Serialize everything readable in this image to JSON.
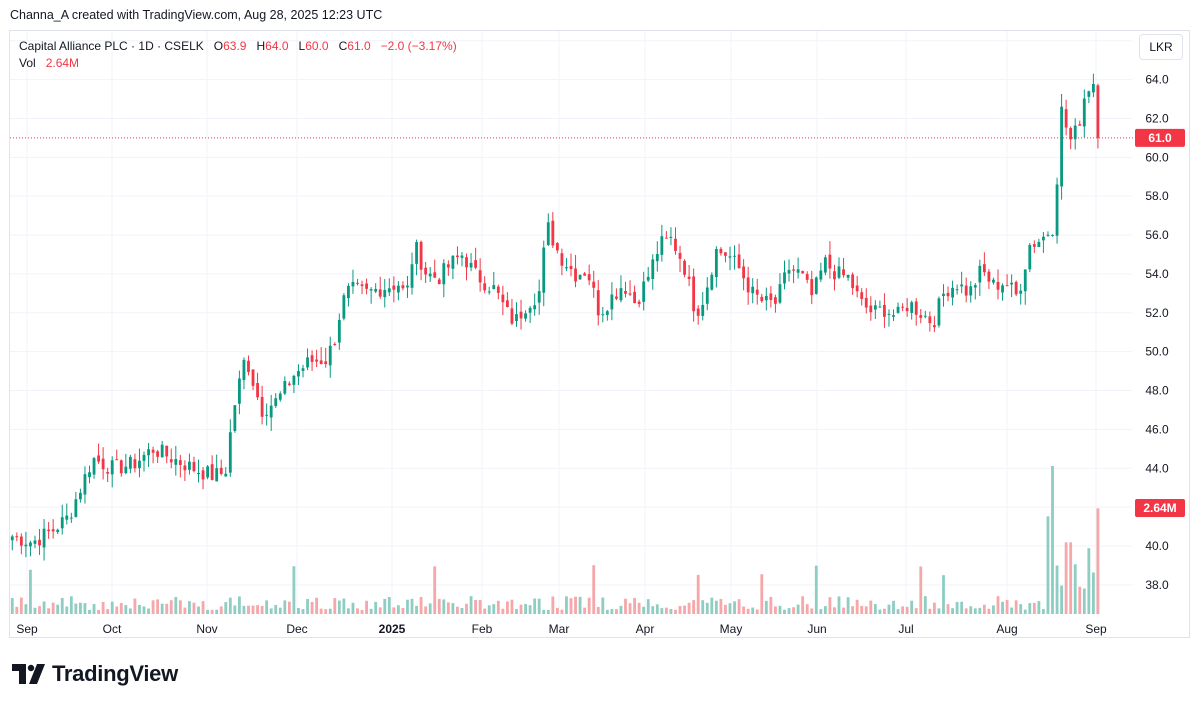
{
  "credit": "Channa_A created with TradingView.com, Aug 28, 2025 12:23 UTC",
  "legend": {
    "symbol": "Capital Alliance PLC · 1D · CSELK",
    "o_label": "O",
    "o_value": "63.9",
    "h_label": "H",
    "h_value": "64.0",
    "l_label": "L",
    "l_value": "60.0",
    "c_label": "C",
    "c_value": "61.0",
    "change": "−2.0 (−3.17%)",
    "vol_label": "Vol",
    "vol_value": "2.64M"
  },
  "currency": "LKR",
  "brand": "TradingView",
  "colors": {
    "up": "#089981",
    "down": "#f23645",
    "up_vol": "#8fcdc3",
    "down_vol": "#f5a7a9",
    "grid": "#f0f3fa",
    "text": "#131722"
  },
  "chart_data": {
    "type": "candlestick",
    "interval": "1D",
    "ylim": [
      36.5,
      66.5
    ],
    "y_ticks": [
      "38.0",
      "40.0",
      "42.0",
      "44.0",
      "46.0",
      "48.0",
      "50.0",
      "52.0",
      "54.0",
      "56.0",
      "58.0",
      "60.0",
      "62.0",
      "64.0",
      "66.0"
    ],
    "x_labels": [
      "Sep",
      "Oct",
      "Nov",
      "Dec",
      "2025",
      "Feb",
      "Mar",
      "Apr",
      "May",
      "Jun",
      "Jul",
      "Aug",
      "Sep"
    ],
    "last_price": "61.0",
    "last_volume": "2.64M",
    "days_shown": 247,
    "last_day_index": 239,
    "vol_max": 3.7,
    "anchors": [
      [
        0,
        40.5
      ],
      [
        5,
        40.2
      ],
      [
        10,
        40.8
      ],
      [
        14,
        41.5
      ],
      [
        20,
        44.5
      ],
      [
        25,
        44.0
      ],
      [
        30,
        44.2
      ],
      [
        35,
        45.0
      ],
      [
        40,
        44.5
      ],
      [
        45,
        44.0
      ],
      [
        50,
        43.6
      ],
      [
        53,
        43.8
      ],
      [
        55,
        47.0
      ],
      [
        58,
        49.8
      ],
      [
        62,
        47.0
      ],
      [
        66,
        47.5
      ],
      [
        70,
        48.8
      ],
      [
        74,
        49.5
      ],
      [
        78,
        49.6
      ],
      [
        80,
        50.5
      ],
      [
        82,
        52.5
      ],
      [
        84,
        53.2
      ],
      [
        88,
        53.0
      ],
      [
        92,
        53.3
      ],
      [
        96,
        53.5
      ],
      [
        98,
        52.8
      ],
      [
        100,
        55.5
      ],
      [
        103,
        54.0
      ],
      [
        106,
        53.8
      ],
      [
        109,
        54.5
      ],
      [
        112,
        55.0
      ],
      [
        115,
        54.0
      ],
      [
        118,
        53.5
      ],
      [
        120,
        53.2
      ],
      [
        123,
        52.0
      ],
      [
        125,
        51.5
      ],
      [
        128,
        52.5
      ],
      [
        131,
        53.0
      ],
      [
        133,
        56.5
      ],
      [
        136,
        55.0
      ],
      [
        140,
        54.0
      ],
      [
        143,
        54.2
      ],
      [
        146,
        52.0
      ],
      [
        149,
        52.8
      ],
      [
        152,
        53.5
      ],
      [
        155,
        52.5
      ],
      [
        158,
        53.8
      ],
      [
        161,
        55.5
      ],
      [
        164,
        55.8
      ],
      [
        167,
        54.5
      ],
      [
        170,
        52.0
      ],
      [
        172,
        52.8
      ],
      [
        175,
        55.2
      ],
      [
        178,
        55.0
      ],
      [
        181,
        54.2
      ],
      [
        184,
        53.0
      ],
      [
        187,
        52.5
      ],
      [
        190,
        52.5
      ],
      [
        193,
        54.3
      ],
      [
        196,
        54.0
      ],
      [
        199,
        52.8
      ],
      [
        202,
        54.6
      ],
      [
        205,
        54.0
      ],
      [
        208,
        53.8
      ],
      [
        211,
        52.5
      ],
      [
        214,
        52.0
      ],
      [
        217,
        52.2
      ],
      [
        220,
        51.8
      ],
      [
        223,
        52.5
      ],
      [
        226,
        52.0
      ],
      [
        229,
        51.5
      ],
      [
        232,
        53.2
      ],
      [
        235,
        53.5
      ],
      [
        238,
        53.0
      ],
      [
        241,
        54.2
      ],
      [
        244,
        53.4
      ],
      [
        247,
        53.6
      ],
      [
        250,
        52.8
      ],
      [
        253,
        55.5
      ],
      [
        256,
        55.8
      ],
      [
        259,
        56.5
      ],
      [
        261,
        62.5
      ],
      [
        263,
        60.8
      ],
      [
        265,
        61.5
      ],
      [
        267,
        63.5
      ],
      [
        269,
        63.9
      ],
      [
        270,
        61.0
      ]
    ]
  }
}
